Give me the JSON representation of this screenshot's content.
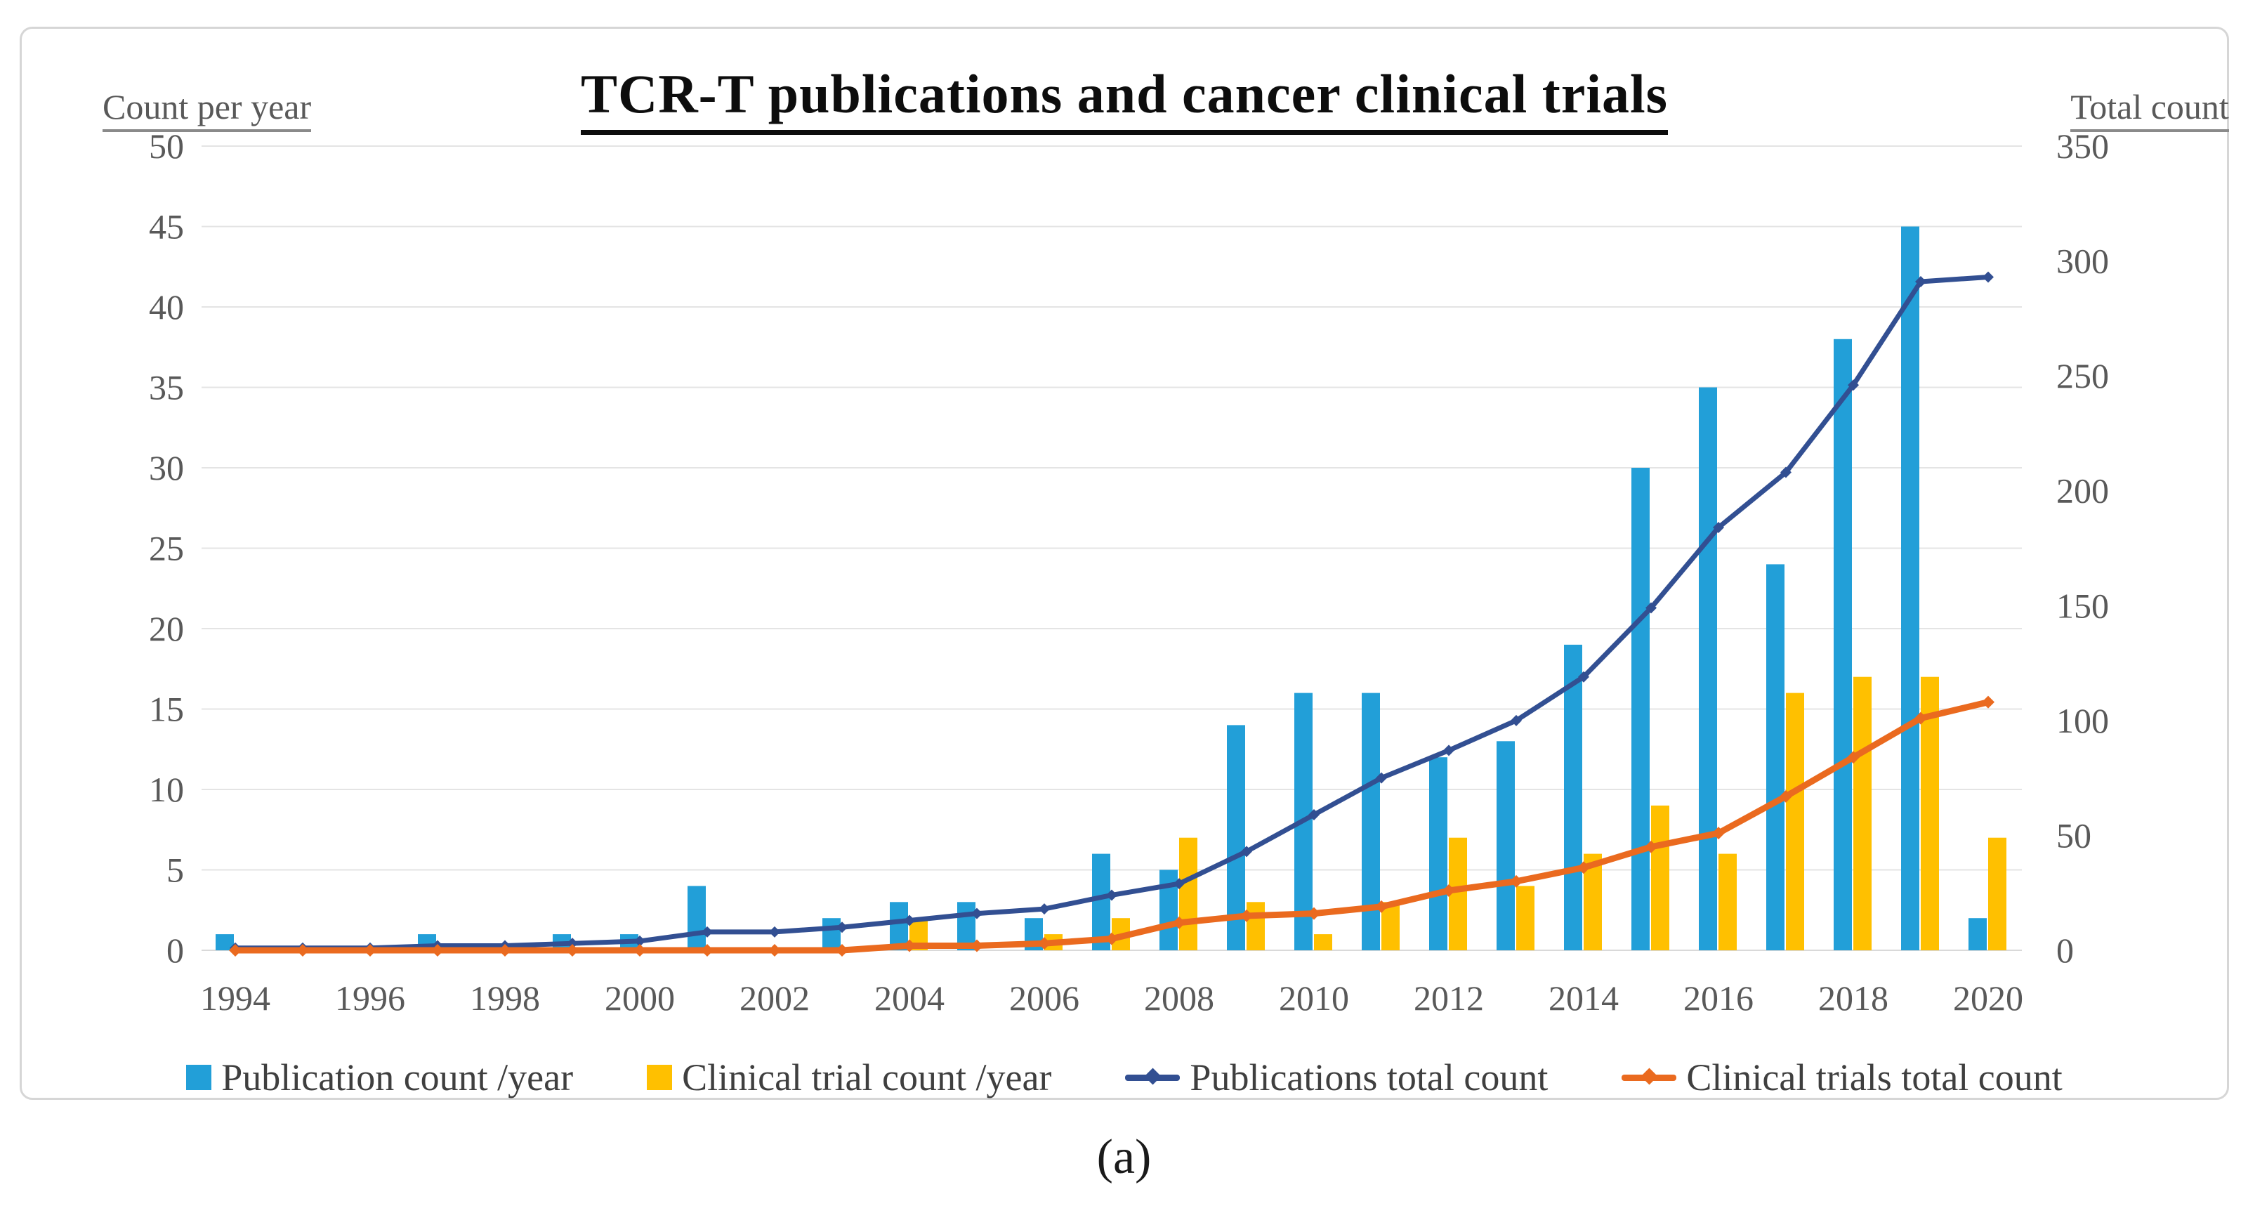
{
  "figure": {
    "title": "TCR-T publications and cancer clinical trials",
    "caption": "(a)"
  },
  "chart_data": {
    "type": "bar+line combo",
    "title": "TCR-T publications and cancer clinical trials",
    "x": [
      1994,
      1995,
      1996,
      1997,
      1998,
      1999,
      2000,
      2001,
      2002,
      2003,
      2004,
      2005,
      2006,
      2007,
      2008,
      2009,
      2010,
      2011,
      2012,
      2013,
      2014,
      2015,
      2016,
      2017,
      2018,
      2019,
      2020
    ],
    "x_tick_label_every": 2,
    "grid": "horizontal",
    "legend_position": "bottom",
    "left_axis": {
      "title": "Count per year",
      "min": 0,
      "max": 50,
      "step": 5
    },
    "right_axis": {
      "title": "Total count",
      "min": 0,
      "max": 350,
      "step": 50
    },
    "series": [
      {
        "name": "Publication count /year",
        "type": "bar",
        "axis": "left",
        "color": "#229FD8",
        "values": [
          1,
          0,
          0,
          1,
          0,
          1,
          1,
          4,
          0,
          2,
          3,
          3,
          2,
          6,
          5,
          14,
          16,
          16,
          12,
          13,
          19,
          30,
          35,
          24,
          38,
          45,
          2
        ]
      },
      {
        "name": "Clinical trial count /year",
        "type": "bar",
        "axis": "left",
        "color": "#FFC000",
        "values": [
          0,
          0,
          0,
          0,
          0,
          0,
          0,
          0,
          0,
          0,
          2,
          0,
          1,
          2,
          7,
          3,
          1,
          3,
          7,
          4,
          6,
          9,
          6,
          16,
          17,
          17,
          7
        ]
      },
      {
        "name": "Publications total count",
        "type": "line",
        "axis": "right",
        "color": "#324F92",
        "values": [
          1,
          1,
          1,
          2,
          2,
          3,
          4,
          8,
          8,
          10,
          13,
          16,
          18,
          24,
          29,
          43,
          59,
          75,
          87,
          100,
          119,
          149,
          184,
          208,
          246,
          291,
          293
        ]
      },
      {
        "name": "Clinical trials total count",
        "type": "line",
        "axis": "right",
        "color": "#EA6A1F",
        "values": [
          0,
          0,
          0,
          0,
          0,
          0,
          0,
          0,
          0,
          0,
          2,
          2,
          3,
          5,
          12,
          15,
          16,
          19,
          26,
          30,
          36,
          45,
          51,
          67,
          84,
          101,
          108
        ]
      }
    ],
    "colors": {
      "gridline": "#e4e4e4",
      "axis_text": "#595959",
      "title_text": "#0d0d0d",
      "legend_text": "#3f3f3f"
    }
  }
}
